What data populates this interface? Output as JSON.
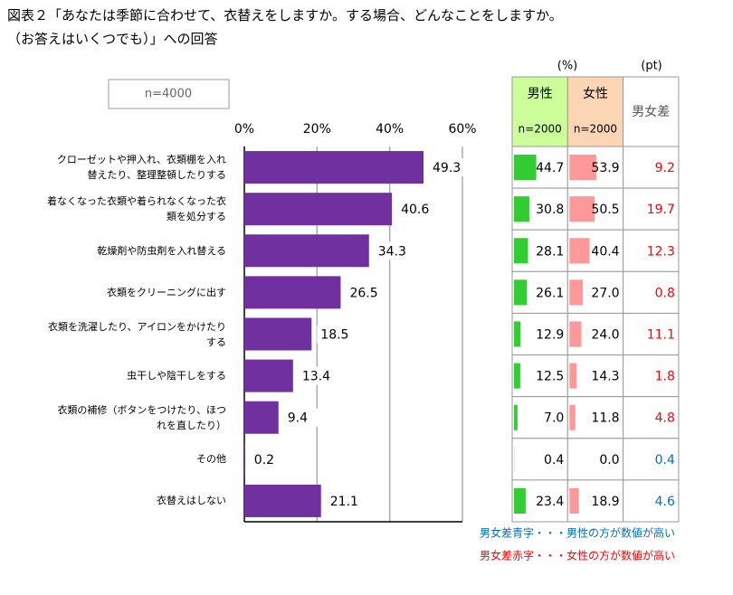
{
  "chart_data": {
    "type": "bar",
    "orientation": "horizontal",
    "title": [
      "図表２「あなたは季節に合わせて、衣替えをしますか。する場合、どんなことをしますか。",
      "（お答えはいくつでも）」への回答"
    ],
    "note": "n=4000",
    "categories": [
      "クローゼットや押入れ、衣類棚を入れ\n替えたり、整理整頓したりする",
      "着なくなった衣類や着られなくなった衣\n類を処分する",
      "乾燥剤や防虫剤を入れ替える",
      "衣類をクリーニングに出す",
      "衣類を洗濯したり、アイロンをかけたり\nする",
      "虫干しや陰干しをする",
      "衣類の補修（ボタンをつけたり、ほつ\nれを直したり）",
      "その他",
      "衣替えはしない"
    ],
    "values": [
      49.3,
      40.6,
      34.3,
      26.5,
      18.5,
      13.4,
      9.4,
      0.2,
      21.1
    ],
    "color": "#7030a0",
    "xlim": [
      0,
      60
    ],
    "xticks": [
      {
        "value": 0,
        "label": "0%"
      },
      {
        "value": 20,
        "label": "20%"
      },
      {
        "value": 40,
        "label": "40%"
      },
      {
        "value": 60,
        "label": "60%"
      }
    ],
    "grid": true
  },
  "table": {
    "unit_left": "(%)",
    "unit_right": "(pt)",
    "columns": [
      {
        "name": "男性",
        "sub": "n=2000",
        "background": "#ccff99",
        "bar_color": "#33cc33",
        "values": [
          44.7,
          30.8,
          28.1,
          26.1,
          12.9,
          12.5,
          7.0,
          0.4,
          23.4
        ],
        "value_labels": [
          "44.7",
          "30.8",
          "28.1",
          "26.1",
          "12.9",
          "12.5",
          "7.0",
          "0.4",
          "23.4"
        ]
      },
      {
        "name": "女性",
        "sub": "n=2000",
        "background": "#fcd5b4",
        "bar_color": "#ff9999",
        "values": [
          53.9,
          50.5,
          40.4,
          27.0,
          24.0,
          14.3,
          11.8,
          0.0,
          18.9
        ],
        "value_labels": [
          "53.9",
          "50.5",
          "40.4",
          "27.0",
          "24.0",
          "14.3",
          "11.8",
          "0.0",
          "18.9"
        ]
      },
      {
        "name": "男女差",
        "values": [
          9.2,
          19.7,
          12.3,
          0.8,
          11.1,
          1.8,
          4.8,
          0.4,
          4.6
        ]
      }
    ],
    "male_higher_color": "#0070c0",
    "female_higher_color": "#ff0000",
    "notes": [
      {
        "text": "男女差青字・・・男性の方が数値が高い",
        "color": "#0070c0"
      },
      {
        "text": "男女差赤字・・・女性の方が数値が高い",
        "color": "#ff0000"
      }
    ]
  }
}
